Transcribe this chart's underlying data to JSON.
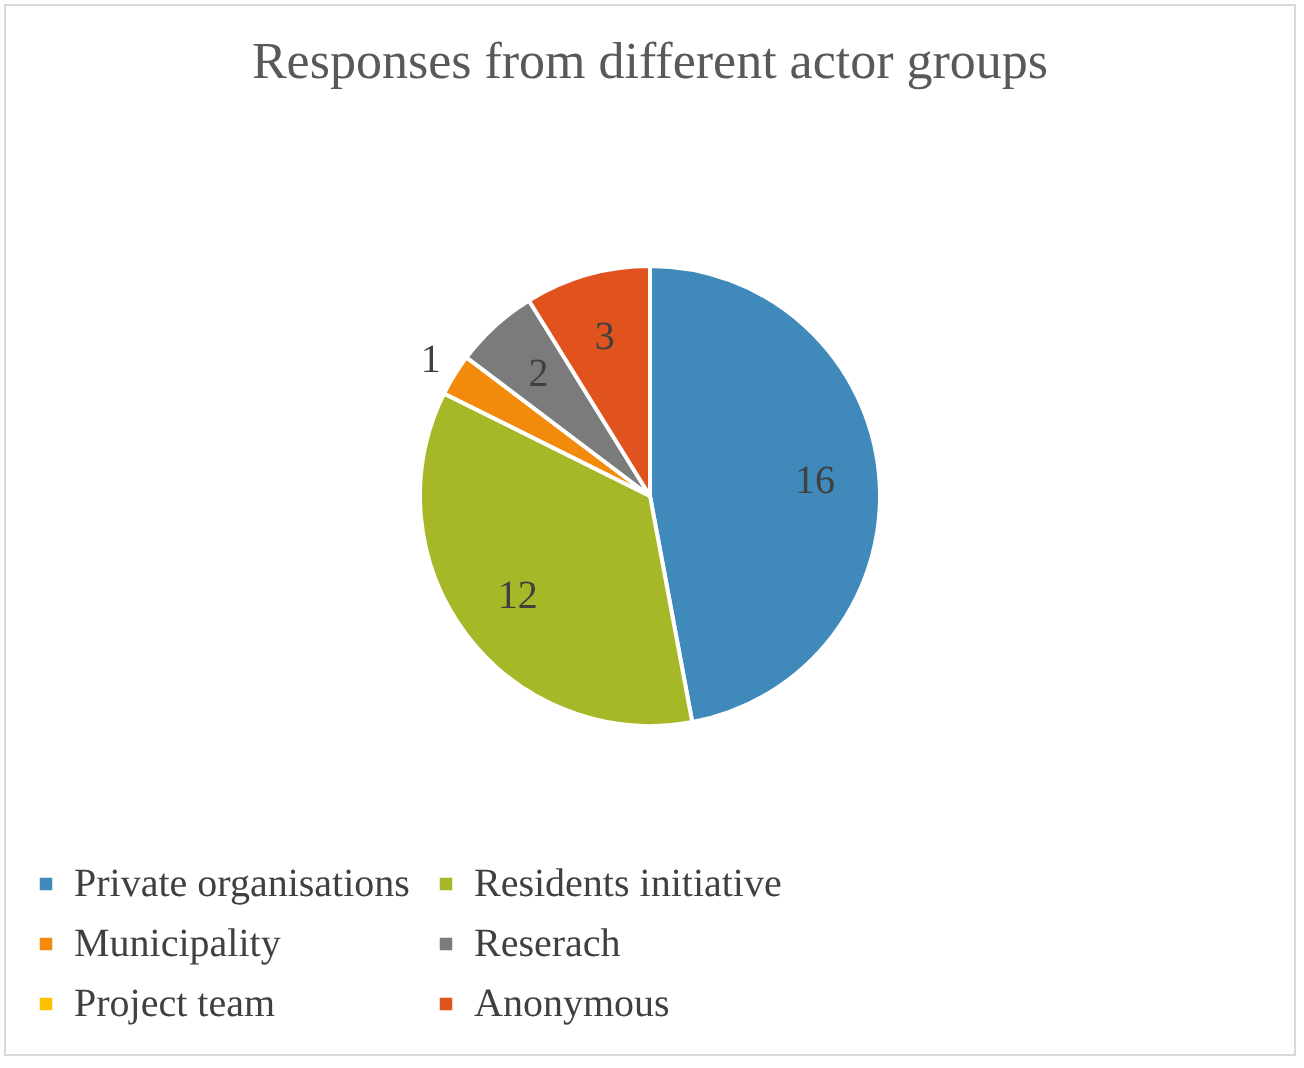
{
  "chart_data": {
    "type": "pie",
    "title": "Responses from different actor groups",
    "categories": [
      "Private organisations",
      "Residents initiative",
      "Municipality",
      "Reserach",
      "Project team",
      "Anonymous"
    ],
    "values": [
      16,
      12,
      1,
      2,
      0,
      3
    ],
    "colors": [
      "#3f8abb",
      "#a6b727",
      "#f28a0c",
      "#7b7b7b",
      "#ffc000",
      "#e0531f"
    ],
    "value_labels": [
      "16",
      "12",
      "1",
      "2",
      null,
      "3"
    ],
    "legend": "bottom"
  }
}
